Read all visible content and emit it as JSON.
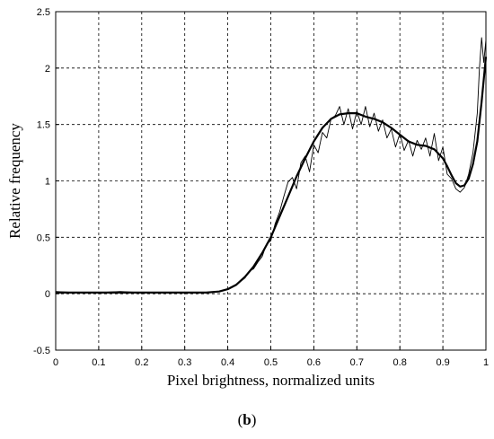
{
  "caption": {
    "open": "(",
    "letter": "b",
    "close": ")"
  },
  "chart_data": {
    "type": "line",
    "title": "",
    "xlabel": "Pixel brightness, normalized units",
    "ylabel": "Relative frequency",
    "xlim": [
      0,
      1
    ],
    "ylim": [
      -0.5,
      2.5
    ],
    "xticks": [
      "0",
      "0.1",
      "0.2",
      "0.3",
      "0.4",
      "0.5",
      "0.6",
      "0.7",
      "0.8",
      "0.9",
      "1"
    ],
    "yticks": [
      "-0.5",
      "0",
      "0.5",
      "1",
      "1.5",
      "2",
      "2.5"
    ],
    "grid": true,
    "series": [
      {
        "style": "noisy",
        "color": "#000000",
        "x": [
          0,
          0.05,
          0.1,
          0.15,
          0.2,
          0.25,
          0.3,
          0.35,
          0.38,
          0.4,
          0.42,
          0.44,
          0.45,
          0.46,
          0.47,
          0.48,
          0.49,
          0.5,
          0.51,
          0.52,
          0.53,
          0.54,
          0.55,
          0.56,
          0.57,
          0.58,
          0.59,
          0.6,
          0.61,
          0.62,
          0.63,
          0.64,
          0.65,
          0.66,
          0.67,
          0.68,
          0.69,
          0.7,
          0.71,
          0.72,
          0.73,
          0.74,
          0.75,
          0.76,
          0.77,
          0.78,
          0.79,
          0.8,
          0.81,
          0.82,
          0.83,
          0.84,
          0.85,
          0.86,
          0.87,
          0.88,
          0.89,
          0.9,
          0.91,
          0.92,
          0.93,
          0.94,
          0.95,
          0.96,
          0.97,
          0.98,
          0.985,
          0.99,
          0.995,
          1.0
        ],
        "y": [
          0.02,
          0.01,
          0.01,
          0.02,
          0.01,
          0.01,
          0.01,
          0.01,
          0.02,
          0.04,
          0.08,
          0.14,
          0.2,
          0.22,
          0.28,
          0.33,
          0.44,
          0.47,
          0.62,
          0.72,
          0.86,
          0.99,
          1.03,
          0.93,
          1.16,
          1.22,
          1.08,
          1.32,
          1.25,
          1.43,
          1.38,
          1.55,
          1.58,
          1.66,
          1.5,
          1.64,
          1.46,
          1.62,
          1.5,
          1.66,
          1.48,
          1.6,
          1.44,
          1.54,
          1.38,
          1.46,
          1.3,
          1.42,
          1.27,
          1.36,
          1.22,
          1.36,
          1.28,
          1.38,
          1.22,
          1.42,
          1.18,
          1.3,
          1.06,
          1.02,
          0.93,
          0.9,
          0.94,
          1.06,
          1.25,
          1.6,
          2.0,
          2.27,
          2.05,
          2.25
        ]
      },
      {
        "style": "smooth",
        "color": "#000000",
        "x": [
          0,
          0.1,
          0.2,
          0.3,
          0.35,
          0.38,
          0.4,
          0.42,
          0.44,
          0.46,
          0.48,
          0.5,
          0.52,
          0.54,
          0.56,
          0.58,
          0.6,
          0.62,
          0.64,
          0.66,
          0.68,
          0.7,
          0.72,
          0.74,
          0.76,
          0.78,
          0.8,
          0.82,
          0.84,
          0.86,
          0.88,
          0.9,
          0.91,
          0.92,
          0.93,
          0.94,
          0.95,
          0.96,
          0.97,
          0.98,
          0.99,
          1.0
        ],
        "y": [
          0.01,
          0.01,
          0.01,
          0.01,
          0.01,
          0.02,
          0.04,
          0.08,
          0.15,
          0.24,
          0.36,
          0.5,
          0.68,
          0.86,
          1.04,
          1.2,
          1.35,
          1.47,
          1.55,
          1.59,
          1.6,
          1.6,
          1.57,
          1.55,
          1.52,
          1.47,
          1.41,
          1.35,
          1.32,
          1.31,
          1.28,
          1.2,
          1.13,
          1.05,
          0.98,
          0.95,
          0.96,
          1.02,
          1.15,
          1.35,
          1.7,
          2.1
        ]
      }
    ]
  }
}
